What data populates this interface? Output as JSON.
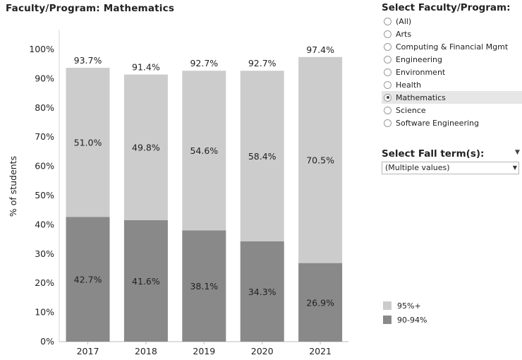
{
  "page_title": "Faculty/Program: Mathematics",
  "filter": {
    "title": "Select Faculty/Program:",
    "options": [
      {
        "label": "(All)",
        "selected": false
      },
      {
        "label": "Arts",
        "selected": false
      },
      {
        "label": "Computing & Financial Mgmt",
        "selected": false
      },
      {
        "label": "Engineering",
        "selected": false
      },
      {
        "label": "Environment",
        "selected": false
      },
      {
        "label": "Health",
        "selected": false
      },
      {
        "label": "Mathematics",
        "selected": true
      },
      {
        "label": "Science",
        "selected": false
      },
      {
        "label": "Software Engineering",
        "selected": false
      }
    ]
  },
  "term": {
    "title": "Select Fall term(s):",
    "value": "(Multiple values)"
  },
  "legend": [
    {
      "label": "95%+",
      "color": "#cccccc"
    },
    {
      "label": "90-94%",
      "color": "#898989"
    }
  ],
  "chart_data": {
    "type": "bar",
    "stacked": true,
    "title": "Faculty/Program: Mathematics",
    "xlabel": "",
    "ylabel": "% of students",
    "categories": [
      "2017",
      "2018",
      "2019",
      "2020",
      "2021"
    ],
    "series": [
      {
        "name": "90-94%",
        "color": "#898989",
        "values": [
          42.7,
          41.6,
          38.1,
          34.3,
          26.9
        ],
        "labels": [
          "42.7%",
          "41.6%",
          "38.1%",
          "34.3%",
          "26.9%"
        ]
      },
      {
        "name": "95%+",
        "color": "#cccccc",
        "values": [
          51.0,
          49.8,
          54.6,
          58.4,
          70.5
        ],
        "labels": [
          "51.0%",
          "49.8%",
          "54.6%",
          "58.4%",
          "70.5%"
        ]
      }
    ],
    "totals": [
      93.7,
      91.4,
      92.7,
      92.7,
      97.4
    ],
    "total_labels": [
      "93.7%",
      "91.4%",
      "92.7%",
      "92.7%",
      "97.4%"
    ],
    "ylim": [
      0,
      100
    ],
    "yticks": [
      0,
      10,
      20,
      30,
      40,
      50,
      60,
      70,
      80,
      90,
      100
    ],
    "ytick_labels": [
      "0%",
      "10%",
      "20%",
      "30%",
      "40%",
      "50%",
      "60%",
      "70%",
      "80%",
      "90%",
      "100%"
    ],
    "grid": false
  }
}
